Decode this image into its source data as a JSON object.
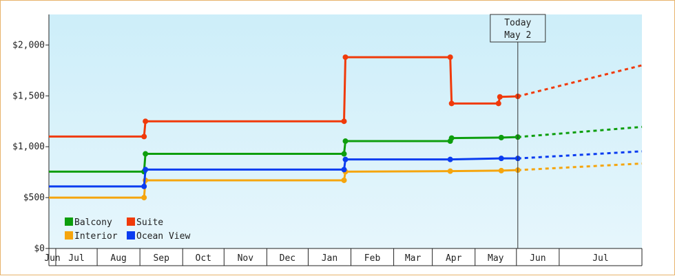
{
  "chart_data": {
    "type": "line",
    "x_months": [
      "Jun",
      "Jul",
      "Aug",
      "Sep",
      "Oct",
      "Nov",
      "Dec",
      "Jan",
      "Feb",
      "Mar",
      "Apr",
      "May",
      "Jun",
      "Jul"
    ],
    "x_range": [
      "2024-05-27",
      "2025-07-31"
    ],
    "ylim": [
      0,
      2300
    ],
    "y_ticks": [
      {
        "value": 0,
        "label": "$0"
      },
      {
        "value": 500,
        "label": "$500"
      },
      {
        "value": 1000,
        "label": "$1,000"
      },
      {
        "value": 1500,
        "label": "$1,500"
      },
      {
        "value": 2000,
        "label": "$2,000"
      }
    ],
    "today": {
      "date": "2025-05-02",
      "line1": "Today",
      "line2": "May 2"
    },
    "legend_position": "bottom-left",
    "series": [
      {
        "name": "Balcony",
        "color": "#0d9e0d",
        "points": [
          {
            "date": "2024-05-27",
            "value": 755
          },
          {
            "date": "2024-08-04",
            "value": 755
          },
          {
            "date": "2024-08-05",
            "value": 930
          },
          {
            "date": "2024-12-27",
            "value": 930
          },
          {
            "date": "2024-12-28",
            "value": 1055
          },
          {
            "date": "2025-03-14",
            "value": 1055
          },
          {
            "date": "2025-03-15",
            "value": 1085
          },
          {
            "date": "2025-04-20",
            "value": 1090
          },
          {
            "date": "2025-05-02",
            "value": 1095
          }
        ],
        "forecast": [
          {
            "date": "2025-05-02",
            "value": 1095
          },
          {
            "date": "2025-07-31",
            "value": 1195
          }
        ]
      },
      {
        "name": "Suite",
        "color": "#f03a0a",
        "points": [
          {
            "date": "2024-05-27",
            "value": 1100
          },
          {
            "date": "2024-08-04",
            "value": 1100
          },
          {
            "date": "2024-08-05",
            "value": 1250
          },
          {
            "date": "2024-12-27",
            "value": 1250
          },
          {
            "date": "2024-12-28",
            "value": 1880
          },
          {
            "date": "2025-03-14",
            "value": 1880
          },
          {
            "date": "2025-03-15",
            "value": 1425
          },
          {
            "date": "2025-04-18",
            "value": 1425
          },
          {
            "date": "2025-04-19",
            "value": 1490
          },
          {
            "date": "2025-05-02",
            "value": 1495
          }
        ],
        "forecast": [
          {
            "date": "2025-05-02",
            "value": 1495
          },
          {
            "date": "2025-07-31",
            "value": 1800
          }
        ]
      },
      {
        "name": "Interior",
        "color": "#f5a50d",
        "points": [
          {
            "date": "2024-05-27",
            "value": 500
          },
          {
            "date": "2024-08-04",
            "value": 500
          },
          {
            "date": "2024-08-05",
            "value": 670
          },
          {
            "date": "2024-12-27",
            "value": 670
          },
          {
            "date": "2024-12-28",
            "value": 755
          },
          {
            "date": "2025-03-14",
            "value": 760
          },
          {
            "date": "2025-04-20",
            "value": 765
          },
          {
            "date": "2025-05-02",
            "value": 770
          }
        ],
        "forecast": [
          {
            "date": "2025-05-02",
            "value": 770
          },
          {
            "date": "2025-07-31",
            "value": 835
          }
        ]
      },
      {
        "name": "Ocean View",
        "color": "#0a3cf0",
        "points": [
          {
            "date": "2024-05-27",
            "value": 610
          },
          {
            "date": "2024-08-04",
            "value": 610
          },
          {
            "date": "2024-08-05",
            "value": 775
          },
          {
            "date": "2024-12-27",
            "value": 775
          },
          {
            "date": "2024-12-28",
            "value": 875
          },
          {
            "date": "2025-03-14",
            "value": 875
          },
          {
            "date": "2025-04-20",
            "value": 885
          },
          {
            "date": "2025-05-02",
            "value": 885
          }
        ],
        "forecast": [
          {
            "date": "2025-05-02",
            "value": 885
          },
          {
            "date": "2025-07-31",
            "value": 955
          }
        ]
      }
    ],
    "legend": [
      {
        "label": "Balcony",
        "color": "#0d9e0d"
      },
      {
        "label": "Suite",
        "color": "#f03a0a"
      },
      {
        "label": "Interior",
        "color": "#f5a50d"
      },
      {
        "label": "Ocean View",
        "color": "#0a3cf0"
      }
    ],
    "colors": {
      "plot_bg_top": "#cdeef9",
      "plot_bg_bottom": "#e6f6fc",
      "frame": "#e8b36a"
    }
  }
}
